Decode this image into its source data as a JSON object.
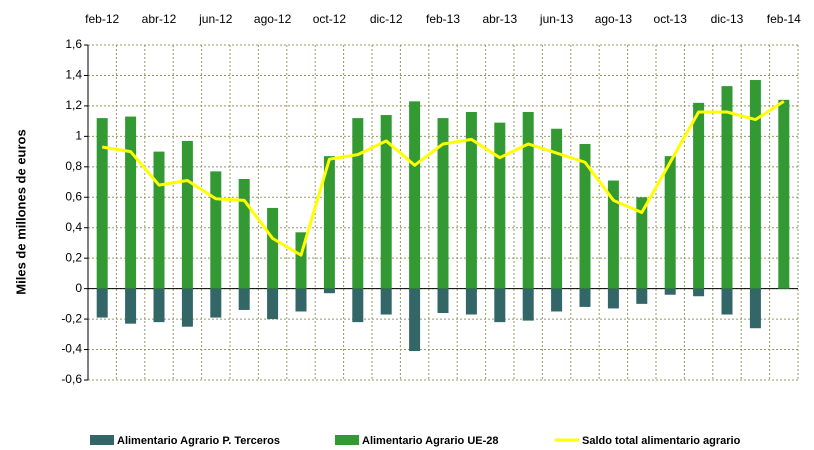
{
  "chart_data": {
    "type": "bar",
    "ylabel": "Miles de millones de euros",
    "categories": [
      "feb-12",
      null,
      "abr-12",
      null,
      "jun-12",
      null,
      "ago-12",
      null,
      "oct-12",
      null,
      "dic-12",
      null,
      "feb-13",
      null,
      "abr-13",
      null,
      "jun-13",
      null,
      "ago-13",
      null,
      "oct-13",
      null,
      "dic-13",
      null,
      "feb-14"
    ],
    "series": [
      {
        "name": "Alimentario Agrario P. Terceros",
        "color": "#336666",
        "type": "bar",
        "values": [
          -0.19,
          -0.23,
          -0.22,
          -0.25,
          -0.19,
          -0.14,
          -0.2,
          -0.15,
          -0.03,
          -0.22,
          -0.17,
          -0.41,
          -0.16,
          -0.17,
          -0.22,
          -0.21,
          -0.15,
          -0.12,
          -0.13,
          -0.1,
          -0.04,
          -0.05,
          -0.17,
          -0.26,
          0.02
        ]
      },
      {
        "name": "Alimentario Agrario UE-28",
        "color": "#339933",
        "type": "bar",
        "values": [
          1.12,
          1.13,
          0.9,
          0.97,
          0.77,
          0.72,
          0.53,
          0.37,
          0.87,
          1.12,
          1.14,
          1.23,
          1.12,
          1.16,
          1.09,
          1.16,
          1.05,
          0.95,
          0.71,
          0.6,
          0.87,
          1.22,
          1.33,
          1.37,
          1.24
        ]
      },
      {
        "name": "Saldo total alimentario agrario",
        "color": "#ffff00",
        "type": "line",
        "values": [
          0.93,
          0.9,
          0.68,
          0.71,
          0.59,
          0.58,
          0.33,
          0.22,
          0.85,
          0.88,
          0.97,
          0.81,
          0.95,
          0.98,
          0.86,
          0.95,
          0.89,
          0.83,
          0.58,
          0.5,
          0.83,
          1.16,
          1.16,
          1.11,
          1.23
        ]
      }
    ],
    "ylim": [
      -0.6,
      1.6
    ],
    "yticks": [
      {
        "value": 1.6,
        "label": "1,6"
      },
      {
        "value": 1.4,
        "label": "1,4"
      },
      {
        "value": 1.2,
        "label": "1,2"
      },
      1,
      {
        "value": 0.8,
        "label": "0,8"
      },
      {
        "value": 0.6,
        "label": "0,6"
      },
      {
        "value": 0.4,
        "label": "0,4"
      },
      {
        "value": 0.2,
        "label": "0,2"
      },
      0,
      {
        "value": -0.2,
        "label": "-0,2"
      },
      {
        "value": -0.4,
        "label": "-0,4"
      },
      {
        "value": -0.6,
        "label": "-0,6"
      }
    ],
    "grid": true
  }
}
